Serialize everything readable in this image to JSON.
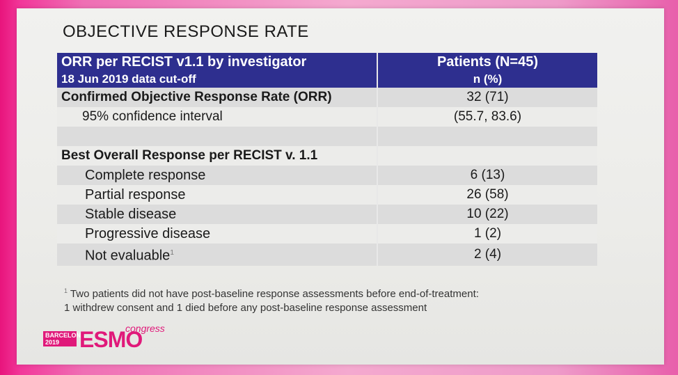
{
  "slide": {
    "title": "OBJECTIVE RESPONSE RATE"
  },
  "table": {
    "header": {
      "col1_line1": "ORR per RECIST v1.1 by investigator",
      "col1_line2": "18 Jun 2019 data cut-off",
      "col2_line1": "Patients (N=45)",
      "col2_line2": "n (%)"
    },
    "rows": [
      {
        "label": "Confirmed Objective Response Rate (ORR)",
        "value": "32 (71)"
      },
      {
        "label": "95% confidence interval",
        "value": "(55.7, 83.6)"
      },
      {
        "label": "",
        "value": ""
      },
      {
        "label": "Best Overall Response per RECIST v. 1.1",
        "value": ""
      },
      {
        "label": "Complete response",
        "value": "6 (13)"
      },
      {
        "label": "Partial response",
        "value": "26 (58)"
      },
      {
        "label": "Stable disease",
        "value": "10 (22)"
      },
      {
        "label": "Progressive disease",
        "value": "1 (2)"
      },
      {
        "label": "Not evaluable",
        "value": "2 (4)"
      }
    ],
    "footnote_marker": "1"
  },
  "footnote": {
    "marker": "1",
    "line1": "Two patients did not have post-baseline response assessments before end-of-treatment:",
    "line2": "1 withdrew consent and 1 died before any post-baseline response assessment"
  },
  "logo": {
    "city": "BARCELONA",
    "year": "2019",
    "brand": "ESMO",
    "suffix": "congress"
  },
  "colors": {
    "header_bg": "#2e2f8f",
    "brand_pink": "#e0197a"
  }
}
